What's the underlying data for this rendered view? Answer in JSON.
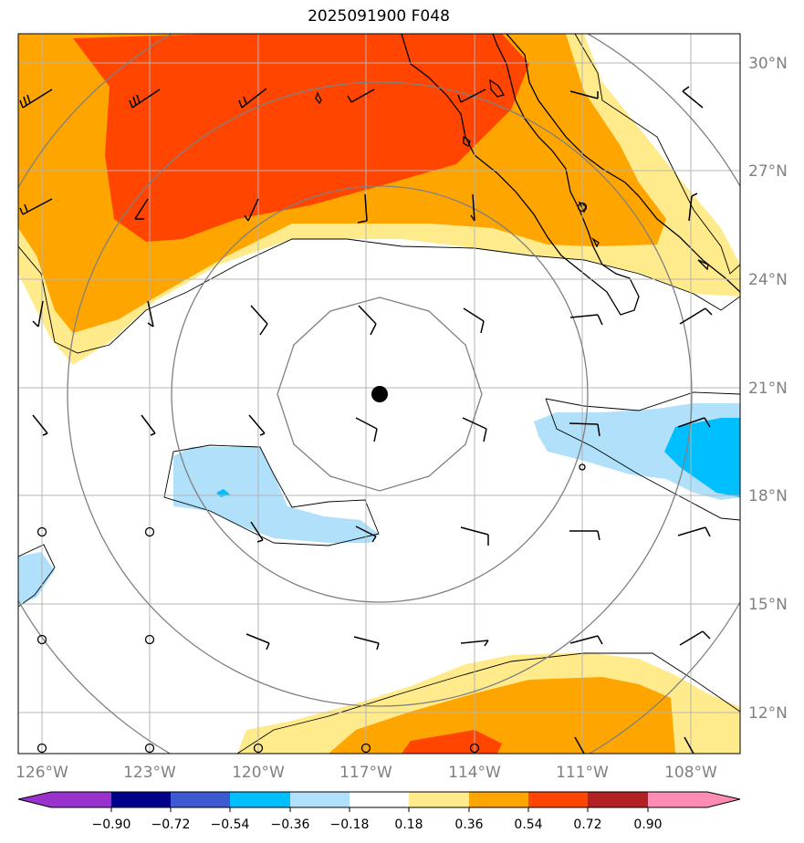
{
  "title": "2025091900 F048",
  "map": {
    "lon_labels": [
      "126°W",
      "123°W",
      "120°W",
      "117°W",
      "114°W",
      "111°W",
      "108°W"
    ],
    "lat_labels": [
      "30°N",
      "27°N",
      "24°N",
      "21°N",
      "18°N",
      "15°N",
      "12°N"
    ],
    "storm_center": {
      "lat": 20.8,
      "lon": -116.7
    }
  },
  "colorbar": {
    "ticks": [
      "−0.90",
      "−0.72",
      "−0.54",
      "−0.36",
      "−0.18",
      "0.18",
      "0.36",
      "0.54",
      "0.72",
      "0.90"
    ],
    "colors": [
      "#9932cc",
      "#00008b",
      "#3c5ad2",
      "#00bfff",
      "#b0e0fa",
      "#ffffff",
      "#ffeb8c",
      "#ffa500",
      "#ff4500",
      "#b22222",
      "#ff8cb4"
    ]
  }
}
